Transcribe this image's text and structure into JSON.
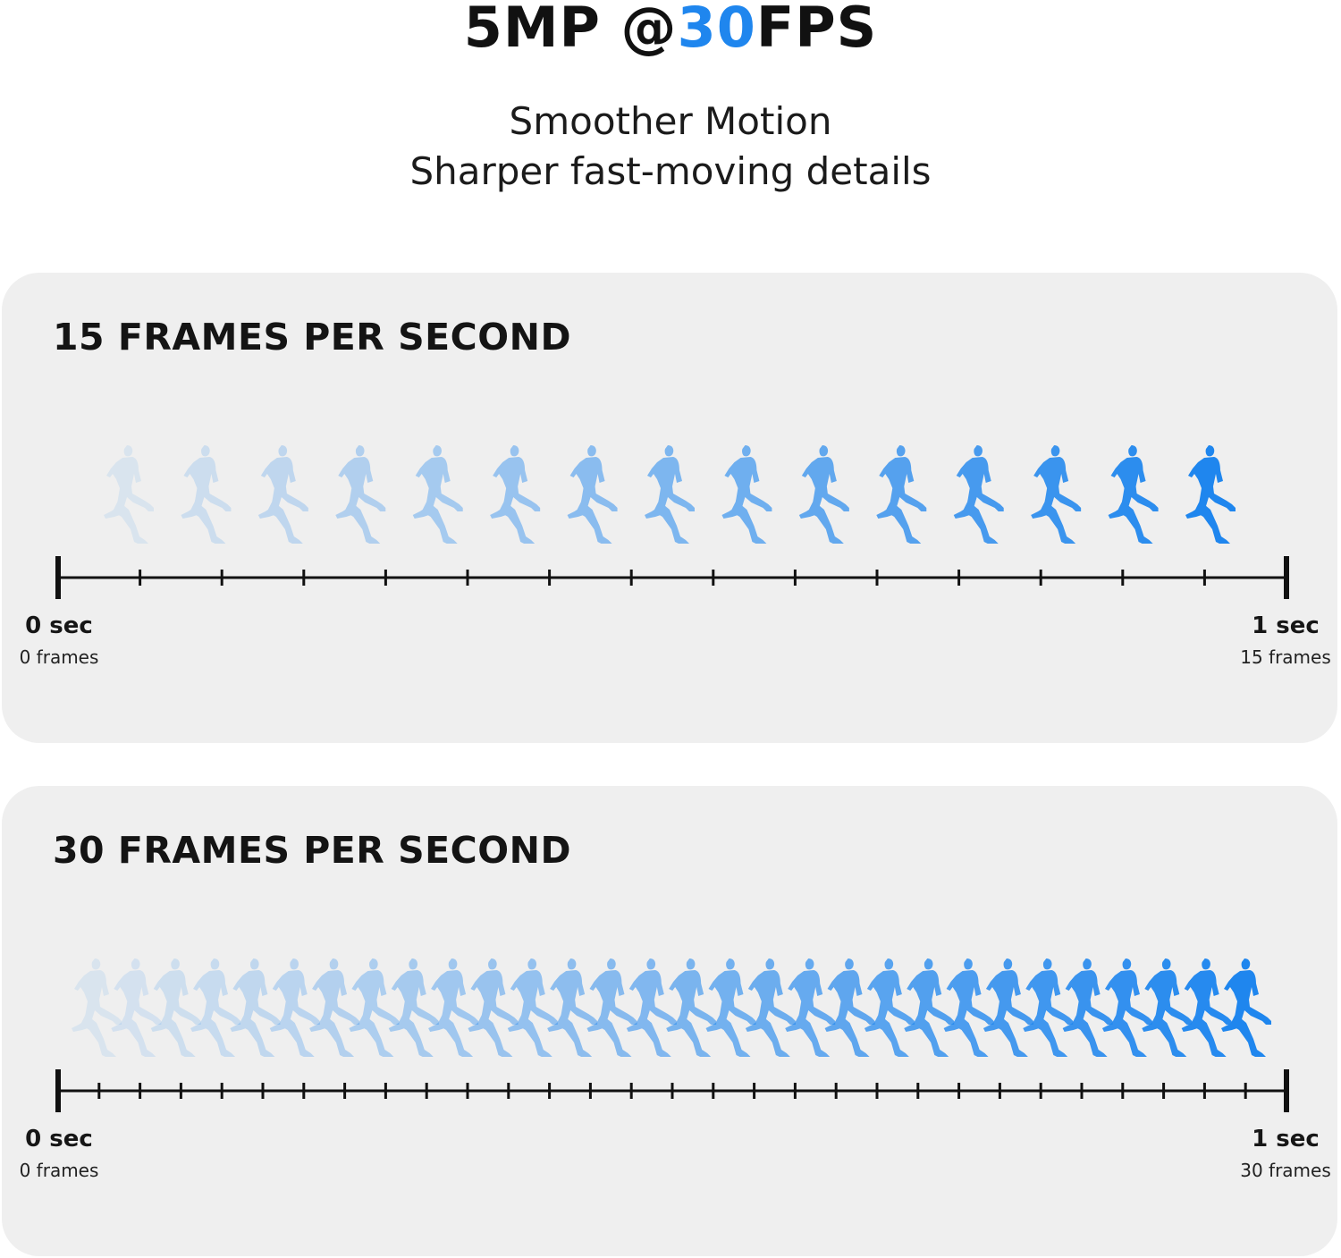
{
  "headline": {
    "prefix": "5MP @",
    "accent": "30",
    "suffix": "FPS",
    "accent_color": "#1f86ee"
  },
  "subheadline": {
    "line1": "Smoother Motion",
    "line2": "Sharper fast-moving details"
  },
  "panels": [
    {
      "title": "15 FRAMES PER SECOND",
      "frames": 15,
      "start_label": "0 sec",
      "start_sub": "0 frames",
      "end_label": "1 sec",
      "end_sub": "15 frames"
    },
    {
      "title": "30 FRAMES PER SECOND",
      "frames": 30,
      "start_label": "0 sec",
      "start_sub": "0 frames",
      "end_label": "1 sec",
      "end_sub": "30 frames"
    }
  ],
  "figure_icon": "running-man-icon",
  "colors": {
    "runner": "#1f86ee",
    "panel_bg": "#efefef",
    "axis": "#111111"
  }
}
